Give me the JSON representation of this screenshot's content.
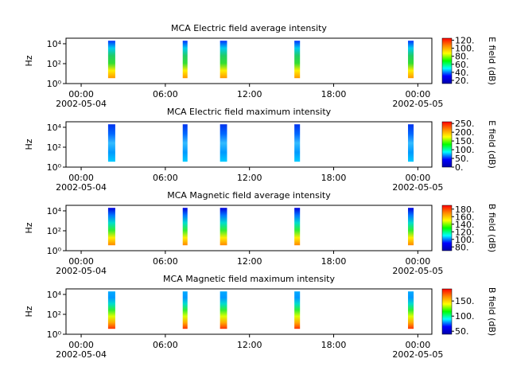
{
  "chart_data": [
    {
      "type": "spectrogram",
      "title": "MCA  Electric field average intensity",
      "ylabel": "Hz",
      "colorbar_label": "E field (dB)",
      "xlim": [
        -1.08,
        25
      ],
      "xticks": [
        {
          "value": 0,
          "label": "00:00"
        },
        {
          "value": 6,
          "label": "06:00"
        },
        {
          "value": 12,
          "label": "12:00"
        },
        {
          "value": 18,
          "label": "18:00"
        },
        {
          "value": 24,
          "label": "00:00"
        }
      ],
      "date_labels": [
        {
          "value": 0,
          "label": "2002-05-04"
        },
        {
          "value": 24,
          "label": "2002-05-05"
        }
      ],
      "ylim": [
        1,
        36000
      ],
      "log_y": true,
      "yticks": [
        {
          "value": 1,
          "label": "10⁰"
        },
        {
          "value": 100,
          "label": "10²"
        },
        {
          "value": 10000,
          "label": "10⁴"
        }
      ],
      "bursts": [
        [
          1.92,
          2.43
        ],
        [
          7.24,
          7.58
        ],
        [
          9.9,
          10.4
        ],
        [
          15.2,
          15.6
        ],
        [
          23.3,
          23.7
        ]
      ],
      "burst_freq": [
        3.5,
        20000
      ],
      "burst_colors": [
        "#ff9900",
        "#ffee00",
        "#33dd33",
        "#22cc66",
        "#00ccee",
        "#0033ff"
      ],
      "clim": [
        12,
        125
      ],
      "cticks": [
        {
          "value": 20,
          "label": "20."
        },
        {
          "value": 40,
          "label": "40."
        },
        {
          "value": 60,
          "label": "60."
        },
        {
          "value": 80,
          "label": "80."
        },
        {
          "value": 100,
          "label": "100."
        },
        {
          "value": 120,
          "label": "120."
        }
      ],
      "colormap": [
        "#0000aa",
        "#0000ff",
        "#00ffff",
        "#00ff00",
        "#ffff00",
        "#ff8800",
        "#ff0000"
      ]
    },
    {
      "type": "spectrogram",
      "title": "MCA  Electric field maximum intensity",
      "ylabel": "Hz",
      "colorbar_label": "E field (dB)",
      "xlim": [
        -1.08,
        25
      ],
      "xticks": [
        {
          "value": 0,
          "label": "00:00"
        },
        {
          "value": 6,
          "label": "06:00"
        },
        {
          "value": 12,
          "label": "12:00"
        },
        {
          "value": 18,
          "label": "18:00"
        },
        {
          "value": 24,
          "label": "00:00"
        }
      ],
      "date_labels": [
        {
          "value": 0,
          "label": "2002-05-04"
        },
        {
          "value": 24,
          "label": "2002-05-05"
        }
      ],
      "ylim": [
        1,
        36000
      ],
      "log_y": true,
      "yticks": [
        {
          "value": 1,
          "label": "10⁰"
        },
        {
          "value": 100,
          "label": "10²"
        },
        {
          "value": 10000,
          "label": "10⁴"
        }
      ],
      "bursts": [
        [
          1.92,
          2.43
        ],
        [
          7.24,
          7.58
        ],
        [
          9.9,
          10.4
        ],
        [
          15.2,
          15.6
        ],
        [
          23.3,
          23.7
        ]
      ],
      "burst_freq": [
        3.5,
        20000
      ],
      "burst_colors": [
        "#00ccff",
        "#0099ff",
        "#33bbff",
        "#0066ff",
        "#0033ee"
      ],
      "clim": [
        0,
        260
      ],
      "cticks": [
        {
          "value": 0,
          "label": "0."
        },
        {
          "value": 50,
          "label": "50."
        },
        {
          "value": 100,
          "label": "100."
        },
        {
          "value": 150,
          "label": "150."
        },
        {
          "value": 200,
          "label": "200."
        },
        {
          "value": 250,
          "label": "250."
        }
      ],
      "colormap": [
        "#0000aa",
        "#0000ff",
        "#00ffff",
        "#00ff00",
        "#ffff00",
        "#ff8800",
        "#ff0000"
      ]
    },
    {
      "type": "spectrogram",
      "title": "MCA  Magnetic field average intensity",
      "ylabel": "Hz",
      "colorbar_label": "B field (dB)",
      "xlim": [
        -1.08,
        25
      ],
      "xticks": [
        {
          "value": 0,
          "label": "00:00"
        },
        {
          "value": 6,
          "label": "06:00"
        },
        {
          "value": 12,
          "label": "12:00"
        },
        {
          "value": 18,
          "label": "18:00"
        },
        {
          "value": 24,
          "label": "00:00"
        }
      ],
      "date_labels": [
        {
          "value": 0,
          "label": "2002-05-04"
        },
        {
          "value": 24,
          "label": "2002-05-05"
        }
      ],
      "ylim": [
        1,
        36000
      ],
      "log_y": true,
      "yticks": [
        {
          "value": 1,
          "label": "10⁰"
        },
        {
          "value": 100,
          "label": "10²"
        },
        {
          "value": 10000,
          "label": "10⁴"
        }
      ],
      "bursts": [
        [
          1.92,
          2.43
        ],
        [
          7.24,
          7.58
        ],
        [
          9.9,
          10.4
        ],
        [
          15.2,
          15.6
        ],
        [
          23.3,
          23.7
        ]
      ],
      "burst_freq": [
        3.5,
        20000
      ],
      "burst_colors": [
        "#ff8800",
        "#ffee00",
        "#33ee33",
        "#00ddcc",
        "#0077ff",
        "#0000dd"
      ],
      "clim": [
        70,
        190
      ],
      "cticks": [
        {
          "value": 80,
          "label": "80."
        },
        {
          "value": 100,
          "label": "100."
        },
        {
          "value": 120,
          "label": "120."
        },
        {
          "value": 140,
          "label": "140."
        },
        {
          "value": 160,
          "label": "160."
        },
        {
          "value": 180,
          "label": "180."
        }
      ],
      "colormap": [
        "#0000aa",
        "#0000ff",
        "#00ffff",
        "#00ff00",
        "#ffff00",
        "#ff8800",
        "#ff0000"
      ]
    },
    {
      "type": "spectrogram",
      "title": "MCA  Magnetic field maximum intensity",
      "ylabel": "Hz",
      "colorbar_label": "B field (dB)",
      "xlim": [
        -1.08,
        25
      ],
      "xticks": [
        {
          "value": 0,
          "label": "00:00"
        },
        {
          "value": 6,
          "label": "06:00"
        },
        {
          "value": 12,
          "label": "12:00"
        },
        {
          "value": 18,
          "label": "18:00"
        },
        {
          "value": 24,
          "label": "00:00"
        }
      ],
      "date_labels": [
        {
          "value": 0,
          "label": "2002-05-04"
        },
        {
          "value": 24,
          "label": "2002-05-05"
        }
      ],
      "ylim": [
        1,
        36000
      ],
      "log_y": true,
      "yticks": [
        {
          "value": 1,
          "label": "10⁰"
        },
        {
          "value": 100,
          "label": "10²"
        },
        {
          "value": 10000,
          "label": "10⁴"
        }
      ],
      "bursts": [
        [
          1.92,
          2.43
        ],
        [
          7.24,
          7.58
        ],
        [
          9.9,
          10.4
        ],
        [
          15.2,
          15.6
        ],
        [
          23.3,
          23.7
        ]
      ],
      "burst_freq": [
        3.5,
        20000
      ],
      "burst_colors": [
        "#ff3300",
        "#ffaa00",
        "#ddff00",
        "#33ee33",
        "#00ddcc",
        "#0099ff",
        "#00aaff"
      ],
      "clim": [
        40,
        190
      ],
      "cticks": [
        {
          "value": 50,
          "label": "50."
        },
        {
          "value": 100,
          "label": "100."
        },
        {
          "value": 150,
          "label": "150."
        }
      ],
      "colormap": [
        "#0000aa",
        "#0000ff",
        "#00ffff",
        "#00ff00",
        "#ffff00",
        "#ff8800",
        "#ff0000"
      ]
    }
  ]
}
